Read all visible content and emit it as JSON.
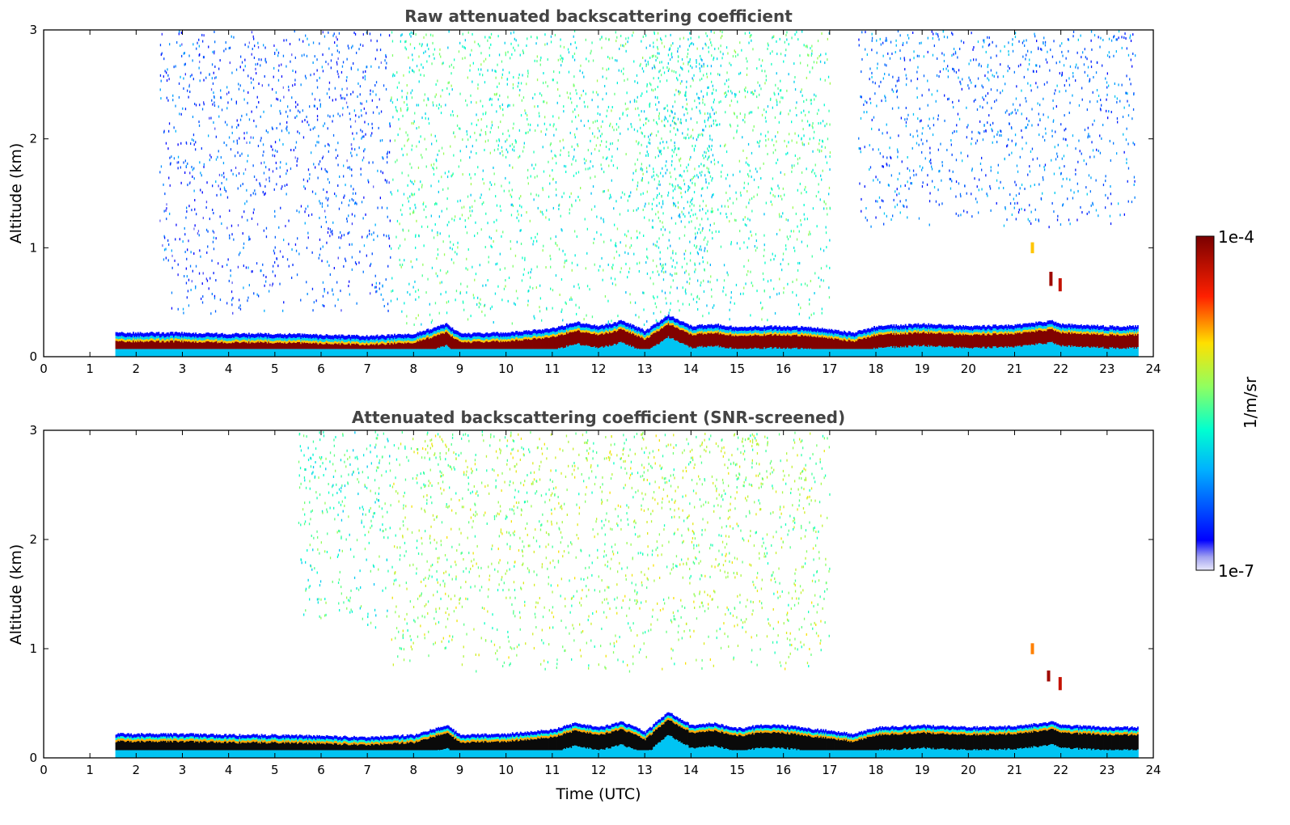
{
  "chart_data": [
    {
      "type": "heatmap",
      "title": "Raw attenuated backscattering coefficient",
      "xlabel": "",
      "ylabel": "Altitude (km)",
      "xlim": [
        0,
        24
      ],
      "ylim": [
        0,
        3
      ],
      "xticks": [
        "0",
        "1",
        "2",
        "3",
        "4",
        "5",
        "6",
        "7",
        "8",
        "9",
        "10",
        "11",
        "12",
        "13",
        "14",
        "15",
        "16",
        "17",
        "18",
        "19",
        "20",
        "21",
        "22",
        "23",
        "24"
      ],
      "yticks": [
        "0",
        "1",
        "2",
        "3"
      ],
      "data_extent_hours": [
        1.55,
        23.65
      ],
      "boundary_layer": {
        "time": [
          1.6,
          3,
          4,
          5,
          6,
          7,
          8,
          8.7,
          9,
          10,
          11,
          11.5,
          12,
          12.5,
          13,
          13.5,
          14,
          14.5,
          15,
          15.5,
          16,
          16.5,
          17,
          17.5,
          18,
          19,
          20,
          21,
          21.8,
          22,
          23,
          23.65
        ],
        "top_km": [
          0.22,
          0.22,
          0.21,
          0.21,
          0.2,
          0.19,
          0.21,
          0.3,
          0.21,
          0.22,
          0.26,
          0.32,
          0.28,
          0.33,
          0.24,
          0.38,
          0.28,
          0.3,
          0.27,
          0.28,
          0.28,
          0.27,
          0.25,
          0.22,
          0.28,
          0.3,
          0.28,
          0.29,
          0.33,
          0.3,
          0.28,
          0.28
        ]
      },
      "aerosol_regions": [
        {
          "t0": 7.5,
          "t1": 17.0,
          "z0": 0.3,
          "z1": 3.0,
          "level": 0.45
        },
        {
          "t0": 13.0,
          "t1": 14.5,
          "z0": 0.3,
          "z1": 3.0,
          "level": 0.4
        },
        {
          "t0": 17.6,
          "t1": 23.6,
          "z0": 1.2,
          "z1": 3.0,
          "level": 0.22
        },
        {
          "t0": 2.5,
          "t1": 7.5,
          "z0": 0.4,
          "z1": 3.0,
          "level": 0.18
        }
      ],
      "cloud_features": [
        {
          "t": 21.75,
          "z0": 0.65,
          "z1": 0.78,
          "level": 0.95
        },
        {
          "t": 21.95,
          "z0": 0.6,
          "z1": 0.72,
          "level": 0.9
        },
        {
          "t": 21.35,
          "z0": 0.95,
          "z1": 1.05,
          "level": 0.7
        }
      ]
    },
    {
      "type": "heatmap",
      "title": "Attenuated backscattering coefficient (SNR-screened)",
      "xlabel": "Time (UTC)",
      "ylabel": "Altitude (km)",
      "xlim": [
        0,
        24
      ],
      "ylim": [
        0,
        3
      ],
      "xticks": [
        "0",
        "1",
        "2",
        "3",
        "4",
        "5",
        "6",
        "7",
        "8",
        "9",
        "10",
        "11",
        "12",
        "13",
        "14",
        "15",
        "16",
        "17",
        "18",
        "19",
        "20",
        "21",
        "22",
        "23",
        "24"
      ],
      "yticks": [
        "0",
        "1",
        "2",
        "3"
      ],
      "data_extent_hours": [
        1.55,
        23.65
      ],
      "boundary_layer": {
        "time": [
          1.6,
          3,
          4,
          5,
          6,
          7,
          8,
          8.7,
          9,
          10,
          11,
          11.5,
          12,
          12.5,
          13,
          13.5,
          14,
          14.5,
          15,
          15.5,
          16,
          16.5,
          17,
          17.5,
          18,
          19,
          20,
          21,
          21.8,
          22,
          23,
          23.65
        ],
        "top_km": [
          0.22,
          0.22,
          0.21,
          0.21,
          0.2,
          0.19,
          0.21,
          0.3,
          0.21,
          0.22,
          0.26,
          0.32,
          0.28,
          0.33,
          0.24,
          0.42,
          0.3,
          0.32,
          0.27,
          0.3,
          0.3,
          0.27,
          0.25,
          0.22,
          0.28,
          0.3,
          0.28,
          0.29,
          0.33,
          0.3,
          0.28,
          0.28
        ]
      },
      "aerosol_regions": [
        {
          "t0": 7.5,
          "t1": 17.0,
          "z0": 0.8,
          "z1": 3.0,
          "level": 0.55
        },
        {
          "t0": 5.5,
          "t1": 7.5,
          "z0": 1.2,
          "z1": 3.0,
          "level": 0.45
        }
      ],
      "cloud_features": [
        {
          "t": 21.7,
          "z0": 0.7,
          "z1": 0.8,
          "level": 0.95
        },
        {
          "t": 21.95,
          "z0": 0.62,
          "z1": 0.74,
          "level": 0.9
        },
        {
          "t": 21.35,
          "z0": 0.95,
          "z1": 1.05,
          "level": 0.75
        }
      ]
    }
  ],
  "colorbar": {
    "label": "1/m/sr",
    "max_label": "1e-4",
    "min_label": "1e-7",
    "colormap": "jet",
    "range": [
      1e-07,
      0.0001
    ],
    "scale": "log"
  }
}
